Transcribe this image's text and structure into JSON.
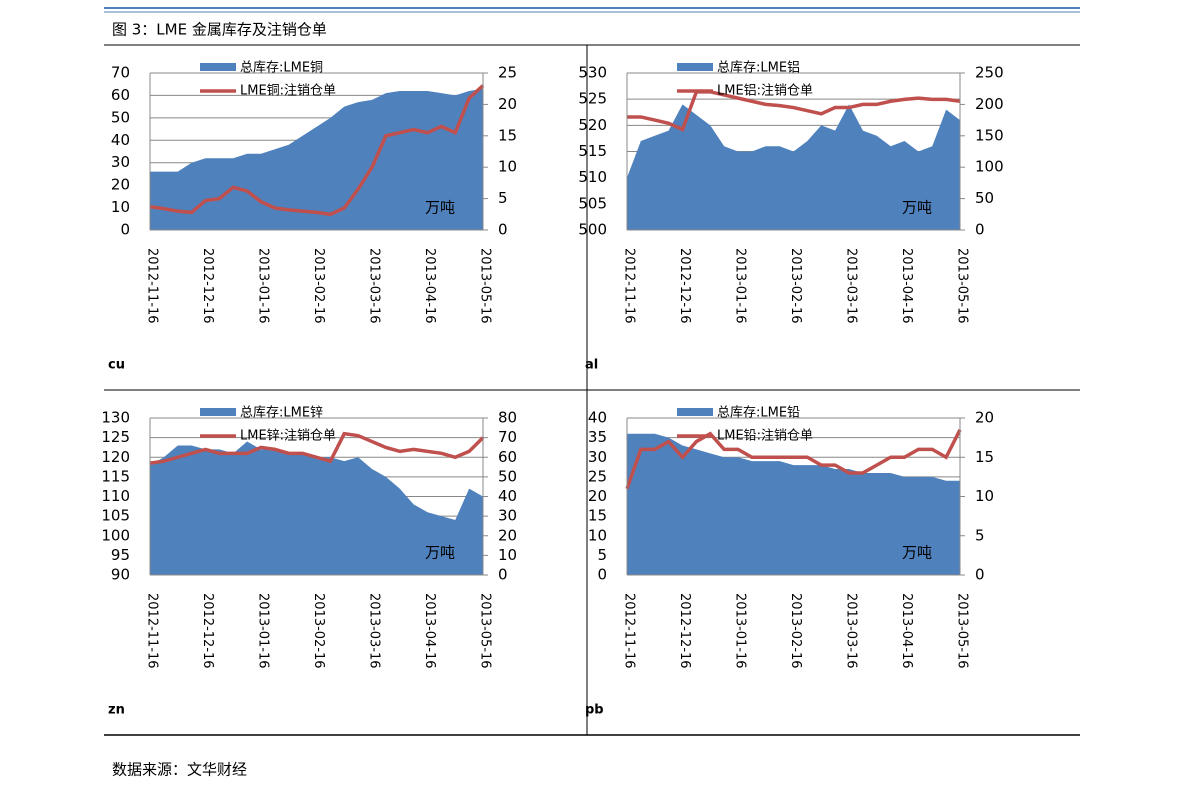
{
  "header": {
    "title": "图 3：LME 金属库存及注销仓单"
  },
  "footer": {
    "source": "数据来源：文华财经"
  },
  "chart_data": [
    {
      "type": "area-line",
      "label": "cu",
      "unit_label": "万吨",
      "categories": [
        "2012-11-16",
        null,
        null,
        null,
        "2012-12-16",
        null,
        null,
        null,
        "2013-01-16",
        null,
        null,
        null,
        "2013-02-16",
        null,
        null,
        null,
        "2013-03-16",
        null,
        null,
        null,
        "2013-04-16",
        null,
        null,
        null,
        "2013-05-16"
      ],
      "series": [
        {
          "name": "总库存:LME铜",
          "color": "#4f81bd",
          "values": [
            26,
            26,
            26,
            30,
            32,
            32,
            32,
            34,
            34,
            36,
            38,
            42,
            46,
            50,
            55,
            57,
            58,
            61,
            62,
            62,
            62,
            61,
            60,
            62,
            63
          ]
        },
        {
          "name": "LME铜:注销仓单",
          "color": "#c0504d",
          "axis": "y2",
          "values": [
            3.7,
            3.4,
            3.0,
            2.8,
            4.7,
            5.0,
            6.8,
            6.2,
            4.5,
            3.5,
            3.2,
            3.0,
            2.8,
            2.5,
            3.5,
            6.5,
            10,
            15,
            15.5,
            16,
            15.5,
            16.5,
            15.5,
            21,
            23
          ]
        }
      ],
      "ylim": [
        0,
        70
      ],
      "yticks": [
        0,
        10,
        20,
        30,
        40,
        50,
        60,
        70
      ],
      "y2lim": [
        0,
        25
      ],
      "y2ticks": [
        0,
        5,
        10,
        15,
        20,
        25
      ],
      "grid": true
    },
    {
      "type": "area-line",
      "label": "al",
      "unit_label": "万吨",
      "categories": [
        "2012-11-16",
        null,
        null,
        null,
        "2012-12-16",
        null,
        null,
        null,
        "2013-01-16",
        null,
        null,
        null,
        "2013-02-16",
        null,
        null,
        null,
        "2013-03-16",
        null,
        null,
        null,
        "2013-04-16",
        null,
        null,
        null,
        "2013-05-16"
      ],
      "series": [
        {
          "name": "总库存:LME铝",
          "color": "#4f81bd",
          "values": [
            510,
            517,
            518,
            519,
            524,
            522,
            520,
            516,
            515,
            515,
            516,
            516,
            515,
            517,
            520,
            519,
            524,
            519,
            518,
            516,
            517,
            515,
            516,
            523,
            521
          ]
        },
        {
          "name": "LME铝:注销仓单",
          "color": "#c0504d",
          "axis": "y2",
          "values": [
            180,
            180,
            175,
            170,
            160,
            220,
            220,
            215,
            210,
            205,
            200,
            198,
            195,
            190,
            185,
            195,
            195,
            200,
            200,
            205,
            208,
            210,
            208,
            208,
            205
          ]
        }
      ],
      "ylim": [
        500,
        530
      ],
      "yticks": [
        500,
        505,
        510,
        515,
        520,
        525,
        530
      ],
      "y2lim": [
        0,
        250
      ],
      "y2ticks": [
        0,
        50,
        100,
        150,
        200,
        250
      ],
      "grid": true
    },
    {
      "type": "area-line",
      "label": "zn",
      "unit_label": "万吨",
      "categories": [
        "2012-11-16",
        null,
        null,
        null,
        "2012-12-16",
        null,
        null,
        null,
        "2013-01-16",
        null,
        null,
        null,
        "2013-02-16",
        null,
        null,
        null,
        "2013-03-16",
        null,
        null,
        null,
        "2013-04-16",
        null,
        null,
        null,
        "2013-05-16"
      ],
      "series": [
        {
          "name": "总库存:LME锌",
          "color": "#4f81bd",
          "values": [
            118,
            120,
            123,
            123,
            122,
            122,
            121,
            124,
            122,
            122,
            121,
            121,
            120,
            120,
            119,
            120,
            117,
            115,
            112,
            108,
            106,
            105,
            104,
            112,
            110
          ]
        },
        {
          "name": "LME锌:注销仓单",
          "color": "#c0504d",
          "axis": "y2",
          "values": [
            57,
            58,
            60,
            62,
            64,
            62,
            62,
            62,
            65,
            64,
            62,
            62,
            60,
            58,
            72,
            71,
            68,
            65,
            63,
            64,
            63,
            62,
            60,
            63,
            70
          ]
        }
      ],
      "ylim": [
        90,
        130
      ],
      "yticks": [
        90,
        95,
        100,
        105,
        110,
        115,
        120,
        125,
        130
      ],
      "y2lim": [
        0,
        80
      ],
      "y2ticks": [
        0,
        10,
        20,
        30,
        40,
        50,
        60,
        70,
        80
      ],
      "grid": true
    },
    {
      "type": "area-line",
      "label": "pb",
      "unit_label": "万吨",
      "categories": [
        "2012-11-16",
        null,
        null,
        null,
        "2012-12-16",
        null,
        null,
        null,
        "2013-01-16",
        null,
        null,
        null,
        "2013-02-16",
        null,
        null,
        null,
        "2013-03-16",
        null,
        null,
        null,
        "2013-04-16",
        null,
        null,
        null,
        "2013-05-16"
      ],
      "series": [
        {
          "name": "总库存:LME铅",
          "color": "#4f81bd",
          "values": [
            36,
            36,
            36,
            35,
            33,
            32,
            31,
            30,
            30,
            29,
            29,
            29,
            28,
            28,
            28,
            27,
            27,
            26,
            26,
            26,
            25,
            25,
            25,
            24,
            24
          ]
        },
        {
          "name": "LME铅:注销仓单",
          "color": "#c0504d",
          "axis": "y2",
          "values": [
            11,
            16,
            16,
            17,
            15,
            17,
            18,
            16,
            16,
            15,
            15,
            15,
            15,
            15,
            14,
            14,
            13,
            13,
            14,
            15,
            15,
            16,
            16,
            15,
            18.5
          ]
        }
      ],
      "ylim": [
        0,
        40
      ],
      "yticks": [
        0,
        5,
        10,
        15,
        20,
        25,
        30,
        35,
        40
      ],
      "y2lim": [
        0,
        20
      ],
      "y2ticks": [
        0,
        5,
        10,
        15,
        20
      ],
      "grid": true
    }
  ]
}
